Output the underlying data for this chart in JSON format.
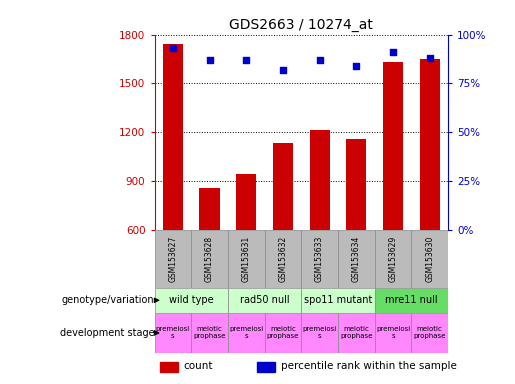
{
  "title": "GDS2663 / 10274_at",
  "samples": [
    "GSM153627",
    "GSM153628",
    "GSM153631",
    "GSM153632",
    "GSM153633",
    "GSM153634",
    "GSM153629",
    "GSM153630"
  ],
  "counts": [
    1740,
    855,
    940,
    1130,
    1210,
    1155,
    1630,
    1650
  ],
  "percentile_ranks": [
    93,
    87,
    87,
    82,
    87,
    84,
    91,
    88
  ],
  "ylim_left": [
    600,
    1800
  ],
  "yticks_left": [
    600,
    900,
    1200,
    1500,
    1800
  ],
  "ylim_right": [
    0,
    100
  ],
  "yticks_right": [
    0,
    25,
    50,
    75,
    100
  ],
  "bar_color": "#cc0000",
  "dot_color": "#0000cc",
  "bar_bottom": 600,
  "genotype_groups": [
    {
      "label": "wild type",
      "start": 0,
      "end": 2,
      "color": "#ccffcc"
    },
    {
      "label": "rad50 null",
      "start": 2,
      "end": 4,
      "color": "#ccffcc"
    },
    {
      "label": "spo11 mutant",
      "start": 4,
      "end": 6,
      "color": "#ccffcc"
    },
    {
      "label": "mre11 null",
      "start": 6,
      "end": 8,
      "color": "#66dd66"
    }
  ],
  "dev_stage_groups": [
    {
      "label": "premeiosi\ns",
      "start": 0,
      "end": 1,
      "color": "#ff88ff"
    },
    {
      "label": "meiotic\nprophase",
      "start": 1,
      "end": 2,
      "color": "#ff88ff"
    },
    {
      "label": "premeiosi\ns",
      "start": 2,
      "end": 3,
      "color": "#ff88ff"
    },
    {
      "label": "meiotic\nprophase",
      "start": 3,
      "end": 4,
      "color": "#ff88ff"
    },
    {
      "label": "premeiosi\ns",
      "start": 4,
      "end": 5,
      "color": "#ff88ff"
    },
    {
      "label": "meiotic\nprophase",
      "start": 5,
      "end": 6,
      "color": "#ff88ff"
    },
    {
      "label": "premeiosi\ns",
      "start": 6,
      "end": 7,
      "color": "#ff88ff"
    },
    {
      "label": "meiotic\nprophase",
      "start": 7,
      "end": 8,
      "color": "#ff88ff"
    }
  ],
  "label_genotype": "genotype/variation",
  "label_devstage": "development stage",
  "legend_count_color": "#cc0000",
  "legend_dot_color": "#0000cc",
  "legend_count_label": "count",
  "legend_dot_label": "percentile rank within the sample",
  "tick_color_left": "#cc0000",
  "tick_color_right": "#0000cc",
  "background_color": "#ffffff",
  "grid_color": "#000000",
  "xtick_bg": "#bbbbbb"
}
